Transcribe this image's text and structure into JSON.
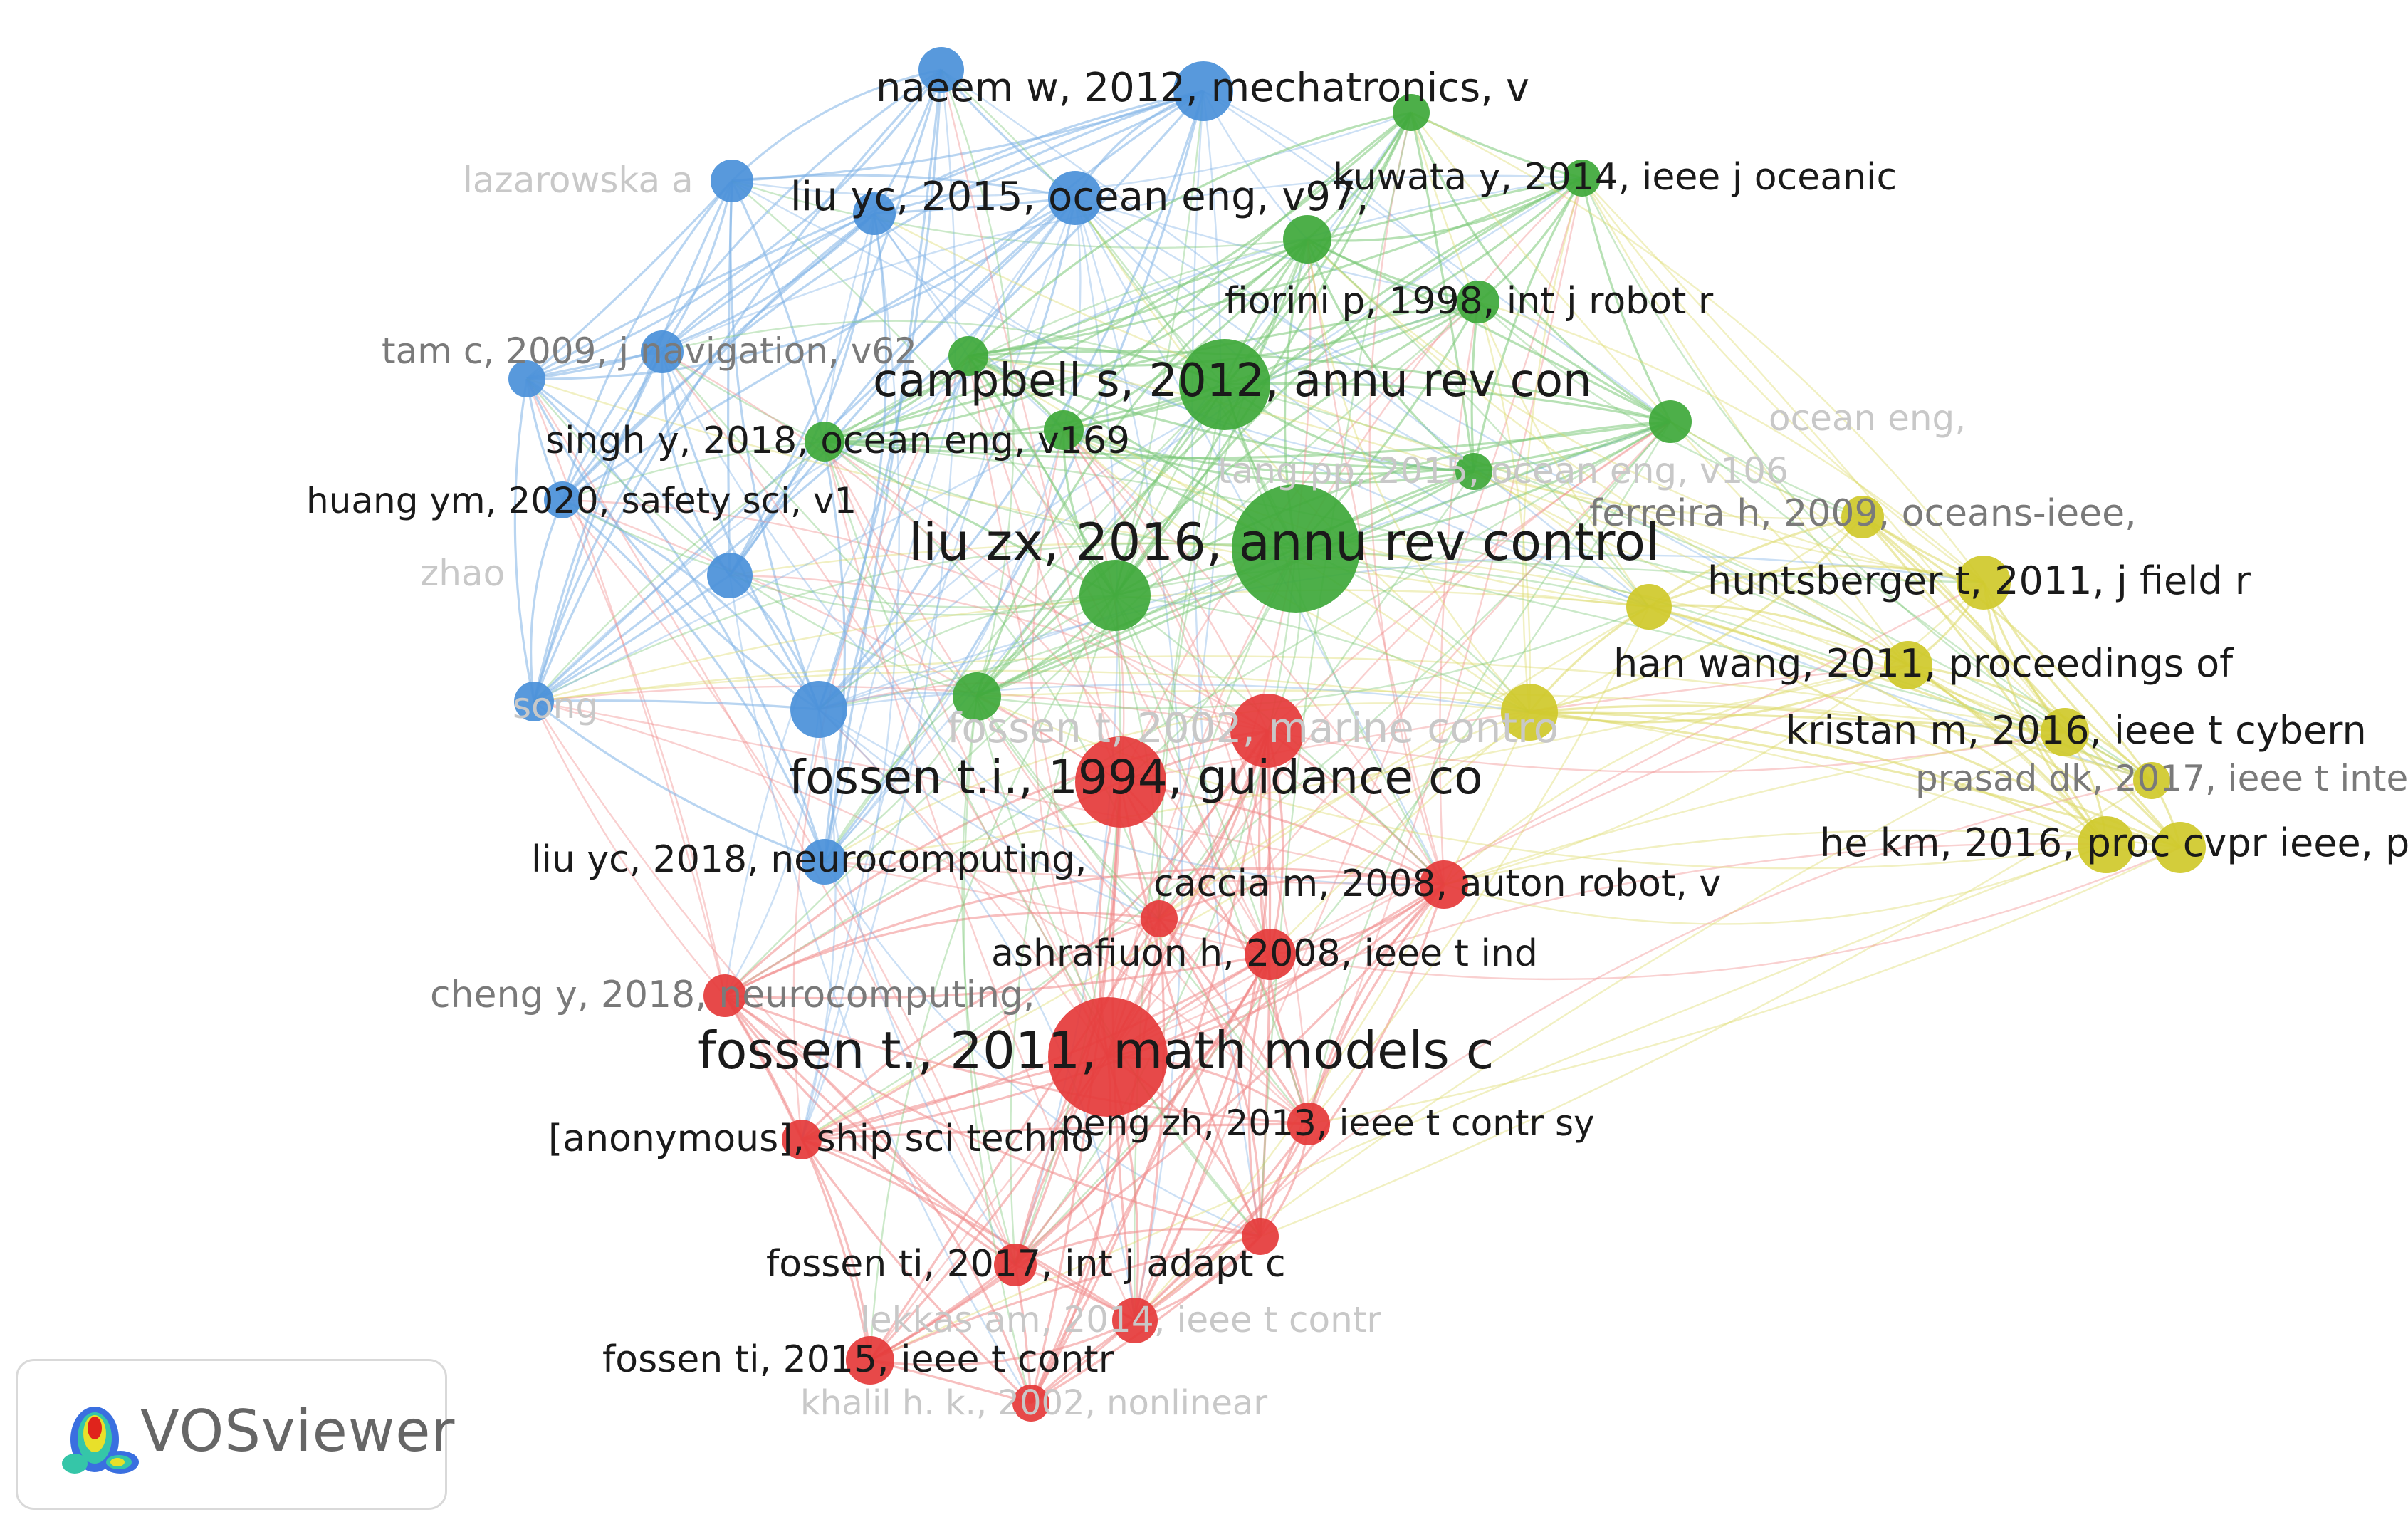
{
  "app": {
    "name": "VOSviewer"
  },
  "colors": {
    "blue": "#4a90d9",
    "green": "#3ea83a",
    "red": "#e53a3a",
    "yellow": "#cfc92a"
  },
  "nodes": [
    {
      "id": "naeem",
      "cluster": "blue",
      "label": "naeem w, 2012, mechatronics, v",
      "shade": "dark"
    },
    {
      "id": "lazarowska",
      "cluster": "blue",
      "label": "lazarowska a",
      "shade": "faint"
    },
    {
      "id": "liuyc2015",
      "cluster": "blue",
      "label": "liu yc, 2015, ocean eng, v97,",
      "shade": "dark"
    },
    {
      "id": "tamc",
      "cluster": "blue",
      "label": "tam c, 2009, j navigation, v62",
      "shade": "mid"
    },
    {
      "id": "huangym",
      "cluster": "blue",
      "label": "huang ym, 2020, safety sci, v1",
      "shade": "dark"
    },
    {
      "id": "zhao",
      "cluster": "blue",
      "label": "zhao",
      "shade": "faint"
    },
    {
      "id": "song",
      "cluster": "blue",
      "label": "song",
      "shade": "faint"
    },
    {
      "id": "liuyc2018",
      "cluster": "blue",
      "label": "liu yc, 2018, neurocomputing,",
      "shade": "dark"
    },
    {
      "id": "kuwata",
      "cluster": "green",
      "label": "kuwata y, 2014, ieee j oceanic",
      "shade": "dark"
    },
    {
      "id": "fiorini",
      "cluster": "green",
      "label": "fiorini p, 1998, int j robot r",
      "shade": "dark"
    },
    {
      "id": "campbell",
      "cluster": "green",
      "label": "campbell s, 2012, annu rev con",
      "shade": "dark"
    },
    {
      "id": "singhy",
      "cluster": "green",
      "label": "singh y, 2018, ocean eng, v169",
      "shade": "dark"
    },
    {
      "id": "tangpp",
      "cluster": "green",
      "label": "tang pp, 2015, ocean eng, v106",
      "shade": "faint"
    },
    {
      "id": "oceaneng",
      "cluster": "green",
      "label": "ocean eng,",
      "shade": "faint"
    },
    {
      "id": "liuzx",
      "cluster": "green",
      "label": "liu zx, 2016, annu rev control",
      "shade": "dark"
    },
    {
      "id": "ferreira",
      "cluster": "yellow",
      "label": "ferreira h, 2009, oceans-ieee,",
      "shade": "mid"
    },
    {
      "id": "huntsberger",
      "cluster": "yellow",
      "label": "huntsberger t, 2011, j field r",
      "shade": "dark"
    },
    {
      "id": "hanwang",
      "cluster": "yellow",
      "label": "han wang, 2011, proceedings of",
      "shade": "dark"
    },
    {
      "id": "kristan",
      "cluster": "yellow",
      "label": "kristan m, 2016, ieee t cybern",
      "shade": "dark"
    },
    {
      "id": "prasad",
      "cluster": "yellow",
      "label": "prasad dk, 2017, ieee t intell",
      "shade": "mid"
    },
    {
      "id": "hekm",
      "cluster": "yellow",
      "label": "he km, 2016, proc cvpr ieee, p",
      "shade": "dark"
    },
    {
      "id": "fossen2002",
      "cluster": "red",
      "label": "fossen t, 2002, marine contro",
      "shade": "faint"
    },
    {
      "id": "fossen1994",
      "cluster": "red",
      "label": "fossen t.i., 1994, guidance co",
      "shade": "dark"
    },
    {
      "id": "caccia",
      "cluster": "red",
      "label": "caccia m, 2008, auton robot, v",
      "shade": "dark"
    },
    {
      "id": "ashrafiuon",
      "cluster": "red",
      "label": "ashrafiuon h, 2008, ieee t ind",
      "shade": "dark"
    },
    {
      "id": "chengy",
      "cluster": "red",
      "label": "cheng y, 2018, neurocomputing,",
      "shade": "mid"
    },
    {
      "id": "fossen2011",
      "cluster": "red",
      "label": "fossen t., 2011, math models c",
      "shade": "dark"
    },
    {
      "id": "anonymous",
      "cluster": "red",
      "label": "[anonymous], ship sci techno",
      "shade": "dark"
    },
    {
      "id": "pengzh",
      "cluster": "red",
      "label": "peng zh, 2013, ieee t contr sy",
      "shade": "dark"
    },
    {
      "id": "fossen2017",
      "cluster": "red",
      "label": "fossen ti, 2017, int j adapt c",
      "shade": "dark"
    },
    {
      "id": "lekkas",
      "cluster": "red",
      "label": "lekkas am, 2014, ieee t contr",
      "shade": "faint"
    },
    {
      "id": "fossen2015",
      "cluster": "red",
      "label": "fossen ti, 2015, ieee t contr",
      "shade": "dark"
    },
    {
      "id": "khalil",
      "cluster": "red",
      "label": "khalil h. k., 2002, nonlinear",
      "shade": "faint"
    }
  ]
}
